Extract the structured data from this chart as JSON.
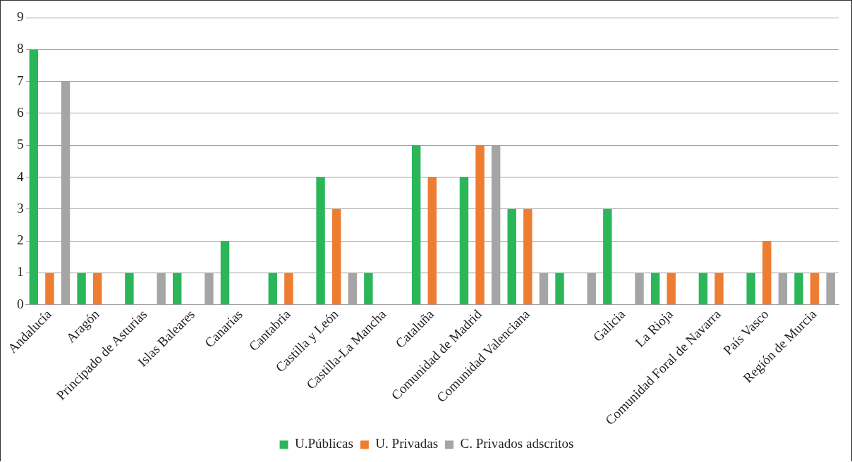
{
  "chart_data": {
    "type": "bar",
    "categories": [
      "Andalucía",
      "Aragón",
      "Principado de Asturias",
      "Islas Baleares",
      "Canarias",
      "Cantabria",
      "Castilla y León",
      "Castilla-La Mancha",
      "Cataluña",
      "Comunidad de Madrid",
      "Comunidad Valenciana",
      null,
      "Galicia",
      "La Rioja",
      "Comunidad Foral de Navarra",
      "País Vasco",
      "Región de Murcia"
    ],
    "series": [
      {
        "name": "U.Públicas",
        "color": "#2cb65a",
        "values": [
          8,
          1,
          1,
          1,
          2,
          1,
          4,
          1,
          5,
          4,
          3,
          1,
          3,
          1,
          1,
          1,
          1
        ]
      },
      {
        "name": "U. Privadas",
        "color": "#ed7d31",
        "values": [
          1,
          1,
          0,
          0,
          0,
          1,
          3,
          0,
          4,
          5,
          3,
          0,
          0,
          1,
          1,
          2,
          1
        ]
      },
      {
        "name": "C. Privados adscritos",
        "color": "#a5a5a5",
        "values": [
          7,
          0,
          1,
          1,
          0,
          0,
          1,
          0,
          0,
          5,
          1,
          1,
          1,
          0,
          0,
          1,
          1
        ]
      }
    ],
    "ylim": [
      0,
      9
    ],
    "yticks": [
      0,
      1,
      2,
      3,
      4,
      5,
      6,
      7,
      8,
      9
    ],
    "grid": "y",
    "legend": "bottom"
  }
}
